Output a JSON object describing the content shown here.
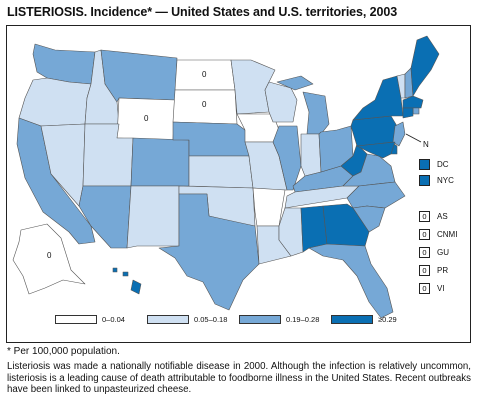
{
  "title": "LISTERIOSIS. Incidence* — United States and U.S. territories, 2003",
  "colors": {
    "bin0": "#ffffff",
    "bin1": "#cfe0f2",
    "bin2": "#76a8d6",
    "bin3": "#0a6fb3",
    "border": "#ffffff",
    "outline": "#222222"
  },
  "state_bins": {
    "WA": 2,
    "OR": 1,
    "CA": 2,
    "NV": 1,
    "ID": 1,
    "MT": 2,
    "WY": 0,
    "UT": 1,
    "AZ": 2,
    "CO": 2,
    "NM": 1,
    "ND": 0,
    "SD": 0,
    "NE": 2,
    "KS": 1,
    "OK": 1,
    "TX": 2,
    "MN": 1,
    "IA": 0,
    "MO": 1,
    "AR": 0,
    "LA": 1,
    "WI": 1,
    "IL": 2,
    "MS": 1,
    "MI": 2,
    "IN": 1,
    "KY": 2,
    "TN": 1,
    "AL": 3,
    "OH": 2,
    "WV": 3,
    "VA": 2,
    "NC": 2,
    "SC": 2,
    "GA": 3,
    "FL": 2,
    "PA": 3,
    "NY": 3,
    "VT": 1,
    "NH": 2,
    "ME": 3,
    "MA": 3,
    "RI": 2,
    "CT": 3,
    "NJ": 2,
    "DE": 3,
    "MD": 3,
    "AK": 0,
    "HI": 3
  },
  "map_labels": {
    "ND": "0",
    "SD": "0",
    "WY": "0",
    "AK": "0",
    "NH_pointer": "N"
  },
  "side_boxes": [
    {
      "label": "DC",
      "bin": 3
    },
    {
      "label": "NYC",
      "bin": 3
    }
  ],
  "territories": [
    {
      "label": "AS",
      "value": "0"
    },
    {
      "label": "CNMI",
      "value": "0"
    },
    {
      "label": "GU",
      "value": "0"
    },
    {
      "label": "PR",
      "value": "0"
    },
    {
      "label": "VI",
      "value": "0"
    }
  ],
  "legend": [
    {
      "label": "0–0.04",
      "bin": 0
    },
    {
      "label": "0.05–0.18",
      "bin": 1
    },
    {
      "label": "0.19–0.28",
      "bin": 2
    },
    {
      "label": "≥0.29",
      "bin": 3
    }
  ],
  "footnote": "* Per 100,000 population.",
  "note": "Listeriosis was made a nationally notifiable disease in 2000. Although the infection is relatively uncommon, listeriosis is a leading cause of death attributable to foodborne illness in the United States. Recent outbreaks have been linked to unpasteurized cheese."
}
